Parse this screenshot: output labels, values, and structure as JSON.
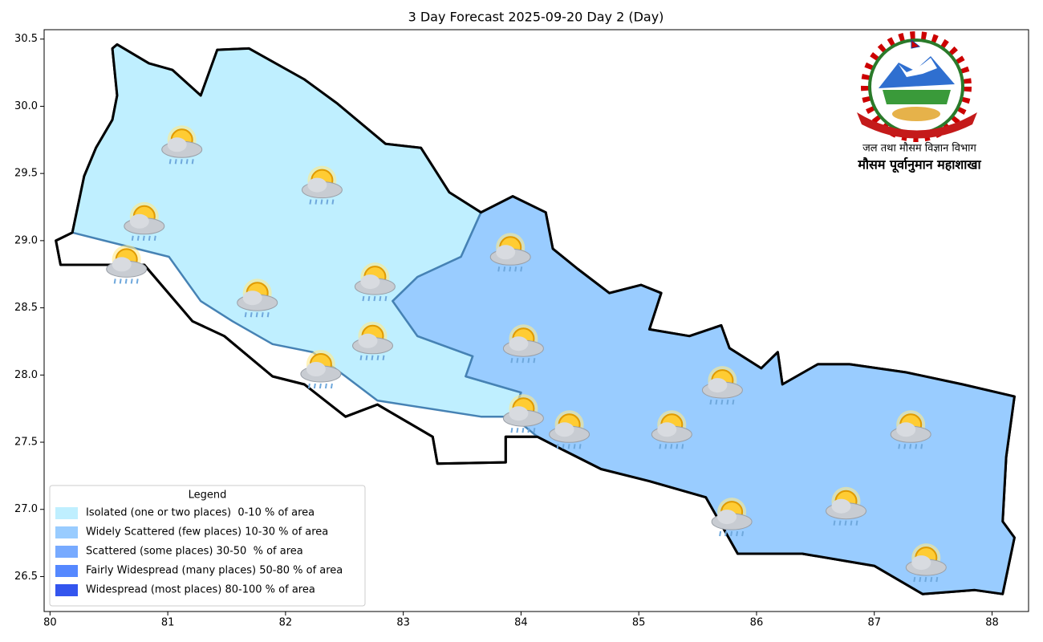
{
  "chart_data": {
    "type": "map",
    "title": "3 Day Forecast 2025-09-20 Day 2 (Day)",
    "xlim": [
      79.95,
      88.31
    ],
    "ylim": [
      26.24,
      30.57
    ],
    "xticks": [
      80,
      81,
      82,
      83,
      84,
      85,
      86,
      87,
      88
    ],
    "yticks": [
      {
        "value": 26.5,
        "label": "26.5"
      },
      {
        "value": 27,
        "label": "27.0"
      },
      {
        "value": 27.5,
        "label": "27.5"
      },
      {
        "value": 28,
        "label": "28.0"
      },
      {
        "value": 28.5,
        "label": "28.5"
      },
      {
        "value": 29,
        "label": "29.0"
      },
      {
        "value": 29.5,
        "label": "29.5"
      },
      {
        "value": 30,
        "label": "30.0"
      },
      {
        "value": 30.5,
        "label": "30.5"
      }
    ],
    "regions": [
      {
        "color": "#ffffff",
        "lon": [
          80.53,
          80.57,
          80.84,
          81.04,
          81.28,
          81.42,
          81.69,
          82.16,
          82.44,
          82.85,
          83.15,
          83.39,
          83.66,
          83.93,
          84.21,
          84.27,
          84.48,
          84.75,
          85.02,
          85.19,
          85.09,
          85.43,
          85.7,
          85.77,
          86.04,
          86.18,
          86.22,
          86.52,
          86.79,
          87.27,
          87.75,
          88.19,
          88.12,
          88.09,
          88.19,
          88.09,
          87.85,
          87.41,
          87.0,
          86.39,
          85.84,
          85.57,
          85.09,
          84.68,
          84.34,
          84.14,
          83.87,
          83.87,
          83.29,
          83.25,
          82.78,
          82.51,
          82.16,
          81.89,
          81.48,
          81.21,
          80.8,
          80.09,
          80.05,
          80.19,
          80.29,
          80.39,
          80.53,
          80.57
        ],
        "lat": [
          30.43,
          30.46,
          30.32,
          30.27,
          30.08,
          30.42,
          30.43,
          30.2,
          30.02,
          29.72,
          29.69,
          29.36,
          29.21,
          29.33,
          29.21,
          28.94,
          28.79,
          28.61,
          28.67,
          28.61,
          28.34,
          28.29,
          28.37,
          28.2,
          28.05,
          28.17,
          27.93,
          28.08,
          28.08,
          28.02,
          27.93,
          27.84,
          27.39,
          26.91,
          26.79,
          26.37,
          26.4,
          26.37,
          26.58,
          26.67,
          26.67,
          27.09,
          27.21,
          27.3,
          27.45,
          27.54,
          27.54,
          27.35,
          27.34,
          27.54,
          27.78,
          27.69,
          27.93,
          27.99,
          28.29,
          28.4,
          28.82,
          28.82,
          29.0,
          29.06,
          29.48,
          29.69,
          29.9,
          30.08
        ]
      },
      {
        "color": "#bfefff",
        "lon": [
          80.57,
          80.84,
          81.04,
          81.28,
          81.42,
          81.69,
          82.16,
          82.44,
          82.85,
          83.15,
          83.39,
          83.66,
          83.49,
          83.12,
          82.91,
          83.12,
          83.59,
          83.53,
          84.0,
          83.93,
          83.66,
          82.78,
          82.51,
          82.23,
          81.89,
          81.55,
          81.28,
          81.01,
          80.19,
          80.29,
          80.39,
          80.53,
          80.57,
          80.53
        ],
        "lat": [
          30.46,
          30.32,
          30.27,
          30.08,
          30.42,
          30.43,
          30.2,
          30.02,
          29.72,
          29.69,
          29.36,
          29.21,
          28.88,
          28.73,
          28.55,
          28.29,
          28.14,
          27.99,
          27.87,
          27.69,
          27.69,
          27.81,
          27.99,
          28.17,
          28.23,
          28.4,
          28.55,
          28.88,
          29.06,
          29.48,
          29.69,
          29.9,
          30.08,
          30.43
        ]
      },
      {
        "color": "#99ccff",
        "lon": [
          83.66,
          83.93,
          84.21,
          84.27,
          84.48,
          84.75,
          85.02,
          85.19,
          85.09,
          85.43,
          85.7,
          85.77,
          86.04,
          86.18,
          86.22,
          86.52,
          86.79,
          87.27,
          87.75,
          88.19,
          88.12,
          88.09,
          88.19,
          88.09,
          87.85,
          87.41,
          87.0,
          86.39,
          85.84,
          85.57,
          85.09,
          84.68,
          84.34,
          84.14,
          83.93,
          84.0,
          83.53,
          83.59,
          83.12,
          82.91,
          83.12,
          83.49
        ],
        "lat": [
          29.21,
          29.33,
          29.21,
          28.94,
          28.79,
          28.61,
          28.67,
          28.61,
          28.34,
          28.29,
          28.37,
          28.2,
          28.05,
          28.17,
          27.93,
          28.08,
          28.08,
          28.02,
          27.93,
          27.84,
          27.39,
          26.91,
          26.79,
          26.37,
          26.4,
          26.37,
          26.58,
          26.67,
          26.67,
          27.09,
          27.21,
          27.3,
          27.45,
          27.54,
          27.69,
          27.87,
          27.99,
          28.14,
          28.29,
          28.55,
          28.73,
          28.88
        ]
      }
    ],
    "icons": {
      "lon": [
        81.12,
        82.31,
        80.8,
        80.65,
        81.76,
        82.76,
        82.74,
        82.3,
        83.91,
        84.02,
        84.02,
        84.41,
        85.28,
        85.71,
        87.31,
        86.76,
        85.79,
        87.44
      ],
      "lat": [
        29.69,
        29.39,
        29.12,
        28.8,
        28.55,
        28.67,
        28.23,
        28.02,
        28.89,
        28.21,
        27.69,
        27.57,
        27.57,
        27.9,
        27.57,
        27.0,
        26.92,
        26.58
      ]
    },
    "annotations": [
      "जल तथा मौसम विज्ञान विभाग",
      "मौसम पूर्वानुमान महाशाखा"
    ],
    "legend": {
      "title": "Legend",
      "position": "lower left",
      "items": [
        {
          "label": "Isolated (one or two places)  0-10 % of area",
          "color": "#bfefff"
        },
        {
          "label": "Widely Scattered (few places) 10-30 % of area",
          "color": "#99ccff"
        },
        {
          "label": "Scattered (some places) 30-50  % of area",
          "color": "#77aaff"
        },
        {
          "label": "Fairly Widespread (many places) 50-80 % of area",
          "color": "#5588ff"
        },
        {
          "label": "Widespread (most places) 80-100 % of area",
          "color": "#3355ee"
        }
      ]
    }
  }
}
